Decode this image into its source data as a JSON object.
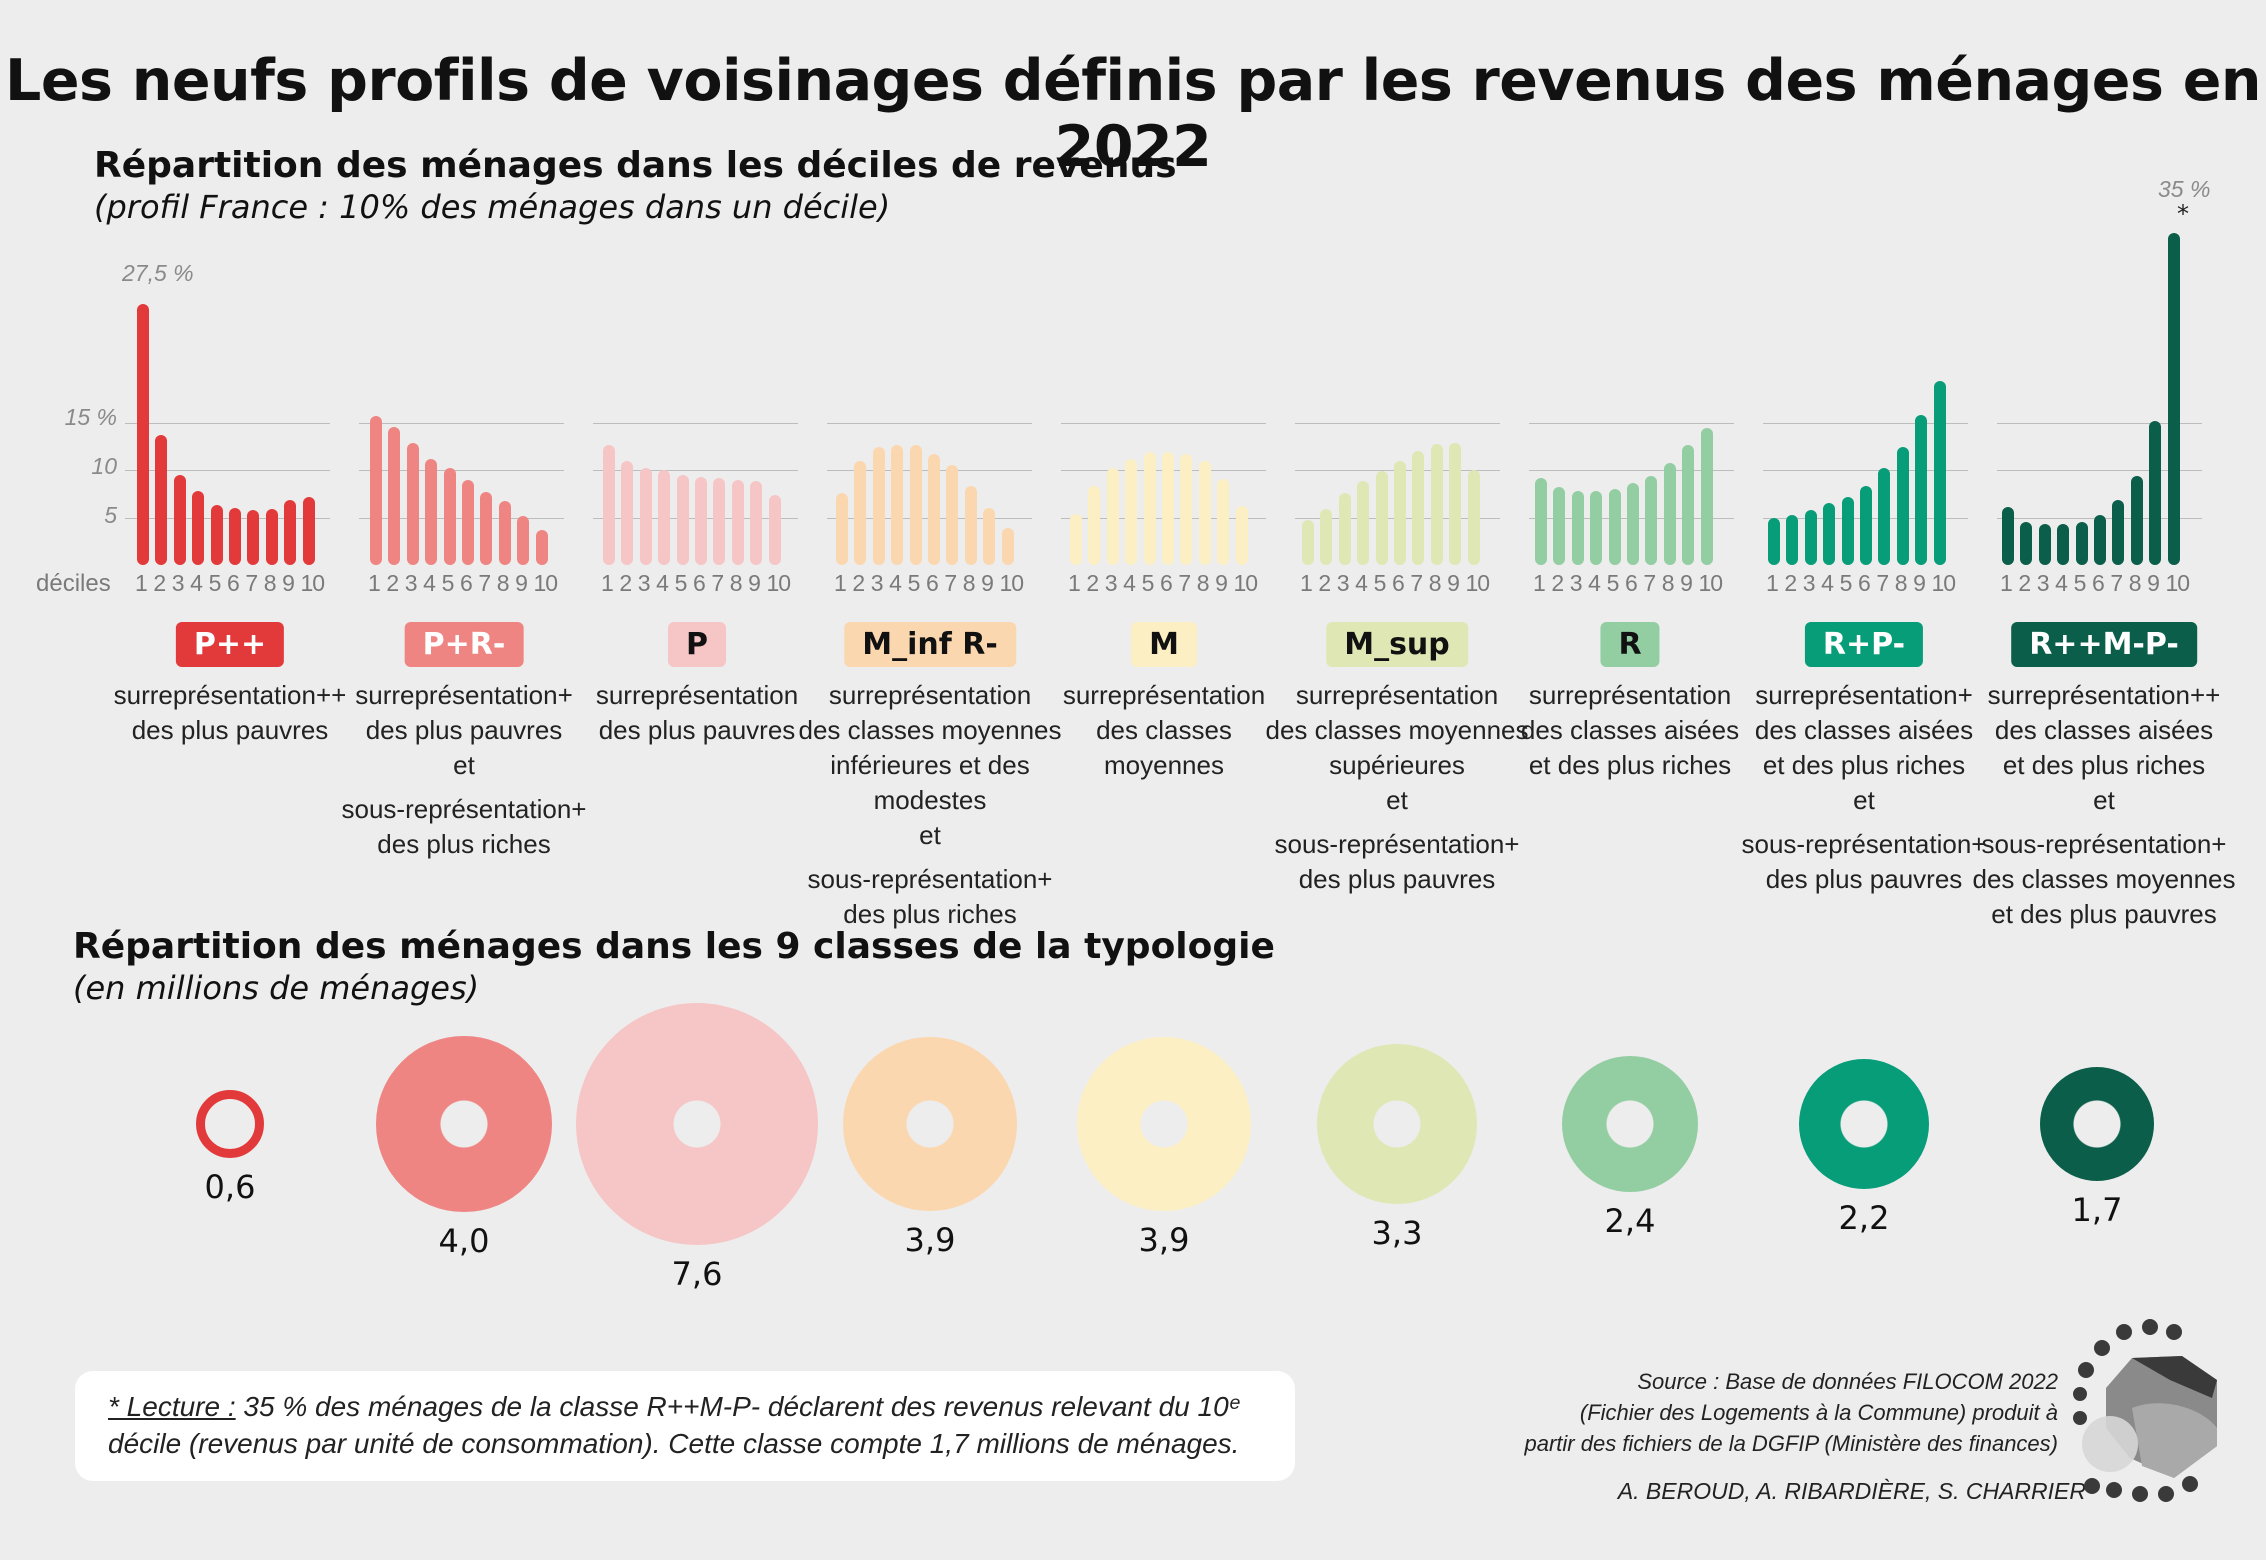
{
  "title": "Les neufs profils de voisinages définis par les revenus des ménages en 2022",
  "section1": {
    "title": "Répartition des ménages dans les déciles de revenus",
    "subtitle": "(profil France : 10% des ménages dans un décile)"
  },
  "section2": {
    "title": "Répartition des ménages dans les 9 classes de la typologie",
    "subtitle": "(en millions de ménages)"
  },
  "chart_data": [
    {
      "type": "bar",
      "title": "Répartition des ménages dans les déciles de revenus",
      "xlabel": "déciles",
      "ylabel": "",
      "ylim": [
        0,
        35
      ],
      "yticks": [
        5,
        10,
        15
      ],
      "ytick_labels": [
        "5",
        "10",
        "15 %"
      ],
      "grid": true,
      "categories": [
        "1",
        "2",
        "3",
        "4",
        "5",
        "6",
        "7",
        "8",
        "9",
        "10"
      ],
      "annotations": [
        {
          "series": "P++",
          "text": "27,5 %"
        },
        {
          "series": "R++M-P-",
          "text": "35 %"
        },
        {
          "series": "R++M-P-",
          "text": "*"
        }
      ],
      "series": [
        {
          "name": "P++",
          "color": "#e23a3b",
          "values": [
            27.5,
            13.7,
            9.5,
            7.8,
            6.3,
            6.0,
            5.8,
            5.9,
            6.8,
            7.2
          ]
        },
        {
          "name": "P+R-",
          "color": "#ef8582",
          "values": [
            15.7,
            14.5,
            12.8,
            11.2,
            10.2,
            9.0,
            7.7,
            6.7,
            5.2,
            3.7
          ]
        },
        {
          "name": "P",
          "color": "#f6c6c6",
          "values": [
            12.6,
            11.0,
            10.2,
            10.0,
            9.5,
            9.3,
            9.2,
            9.0,
            8.8,
            7.4
          ]
        },
        {
          "name": "M_inf R-",
          "color": "#fbd7b0",
          "values": [
            7.6,
            10.9,
            12.4,
            12.6,
            12.6,
            11.7,
            10.5,
            8.3,
            6.0,
            3.9
          ]
        },
        {
          "name": "M",
          "color": "#fcefc4",
          "values": [
            5.4,
            8.3,
            10.2,
            11.2,
            11.9,
            11.9,
            11.7,
            10.9,
            9.1,
            6.2
          ]
        },
        {
          "name": "M_sup",
          "color": "#dfe7b5",
          "values": [
            4.7,
            5.9,
            7.6,
            8.8,
            9.9,
            11.0,
            12.0,
            12.7,
            12.8,
            10.0
          ]
        },
        {
          "name": "R",
          "color": "#93cda2",
          "values": [
            9.2,
            8.2,
            7.8,
            7.8,
            8.0,
            8.6,
            9.4,
            10.7,
            12.6,
            14.4
          ]
        },
        {
          "name": "R+P-",
          "color": "#069d78",
          "values": [
            5.0,
            5.3,
            5.8,
            6.5,
            7.2,
            8.3,
            10.2,
            12.4,
            15.8,
            19.4
          ]
        },
        {
          "name": "R++M-P-",
          "color": "#0b5e4a",
          "values": [
            6.1,
            4.5,
            4.3,
            4.3,
            4.5,
            5.3,
            6.8,
            9.4,
            15.2,
            35.0
          ]
        }
      ]
    },
    {
      "type": "bubble",
      "title": "Répartition des ménages dans les 9 classes de la typologie",
      "unit": "millions de ménages",
      "categories": [
        "P++",
        "P+R-",
        "P",
        "M_inf R-",
        "M",
        "M_sup",
        "R",
        "R+P-",
        "R++M-P-"
      ],
      "values": [
        0.6,
        4.0,
        7.6,
        3.9,
        3.9,
        3.3,
        2.4,
        2.2,
        1.7
      ],
      "labels": [
        "0,6",
        "4,0",
        "7,6",
        "3,9",
        "3,9",
        "3,3",
        "2,4",
        "2,2",
        "1,7"
      ]
    }
  ],
  "profiles": [
    {
      "code": "P++",
      "color": "#e23a3b",
      "text_color": "#ffffff",
      "lines": [
        "surreprésentation++",
        "des plus pauvres"
      ],
      "lines2": []
    },
    {
      "code": "P+R-",
      "color": "#ef8582",
      "text_color": "#ffffff",
      "lines": [
        "surreprésentation+",
        "des plus pauvres",
        "et"
      ],
      "lines2": [
        "sous-représentation+",
        "des plus riches"
      ]
    },
    {
      "code": "P",
      "color": "#f6c6c6",
      "text_color": "#111111",
      "lines": [
        "surreprésentation",
        "des plus pauvres"
      ],
      "lines2": []
    },
    {
      "code": "M_inf R-",
      "color": "#fbd7b0",
      "text_color": "#111111",
      "lines": [
        "surreprésentation",
        "des classes moyennes",
        "inférieures et des modestes",
        "et"
      ],
      "lines2": [
        "sous-représentation+",
        "des plus riches"
      ]
    },
    {
      "code": "M",
      "color": "#fcefc4",
      "text_color": "#111111",
      "lines": [
        "surreprésentation",
        "des classes",
        "moyennes"
      ],
      "lines2": []
    },
    {
      "code": "M_sup",
      "color": "#dfe7b5",
      "text_color": "#111111",
      "lines": [
        "surreprésentation",
        "des classes moyennes",
        "supérieures",
        "et"
      ],
      "lines2": [
        "sous-représentation+",
        "des plus pauvres"
      ]
    },
    {
      "code": "R",
      "color": "#93cda2",
      "text_color": "#111111",
      "lines": [
        "surreprésentation",
        "des classes aisées",
        "et des plus riches"
      ],
      "lines2": []
    },
    {
      "code": "R+P-",
      "color": "#069d78",
      "text_color": "#ffffff",
      "lines": [
        "surreprésentation+",
        "des classes aisées",
        "et des plus riches",
        "et"
      ],
      "lines2": [
        "sous-représentation+",
        "des plus pauvres"
      ]
    },
    {
      "code": "R++M-P-",
      "color": "#0b5e4a",
      "text_color": "#ffffff",
      "lines": [
        "surreprésentation++",
        "des classes aisées",
        "et des plus riches",
        "et"
      ],
      "lines2": [
        "sous-représentation+",
        "des classes moyennes",
        "et des plus pauvres"
      ]
    }
  ],
  "note": {
    "label": "* Lecture :",
    "text": " 35 % des ménages de la classe R++M-P- déclarent des revenus relevant du 10ᵉ décile (revenus par unité de consommation). Cette classe compte 1,7 millions de ménages."
  },
  "source": {
    "line1": "Source : Base de données FILOCOM 2022",
    "line2": "(Fichier des Logements à la Commune) produit à",
    "line3": "partir des fichiers de la DGFIP (Ministère des finances)"
  },
  "authors": "A. BEROUD, A. RIBARDIÈRE, S. CHARRIER",
  "colors": {
    "background": "#ededed",
    "grid": "#bdbdbd",
    "donut_hole": "#ededed",
    "logo_dark": "#3a3a3a",
    "logo_light": "#c8c8c8"
  }
}
